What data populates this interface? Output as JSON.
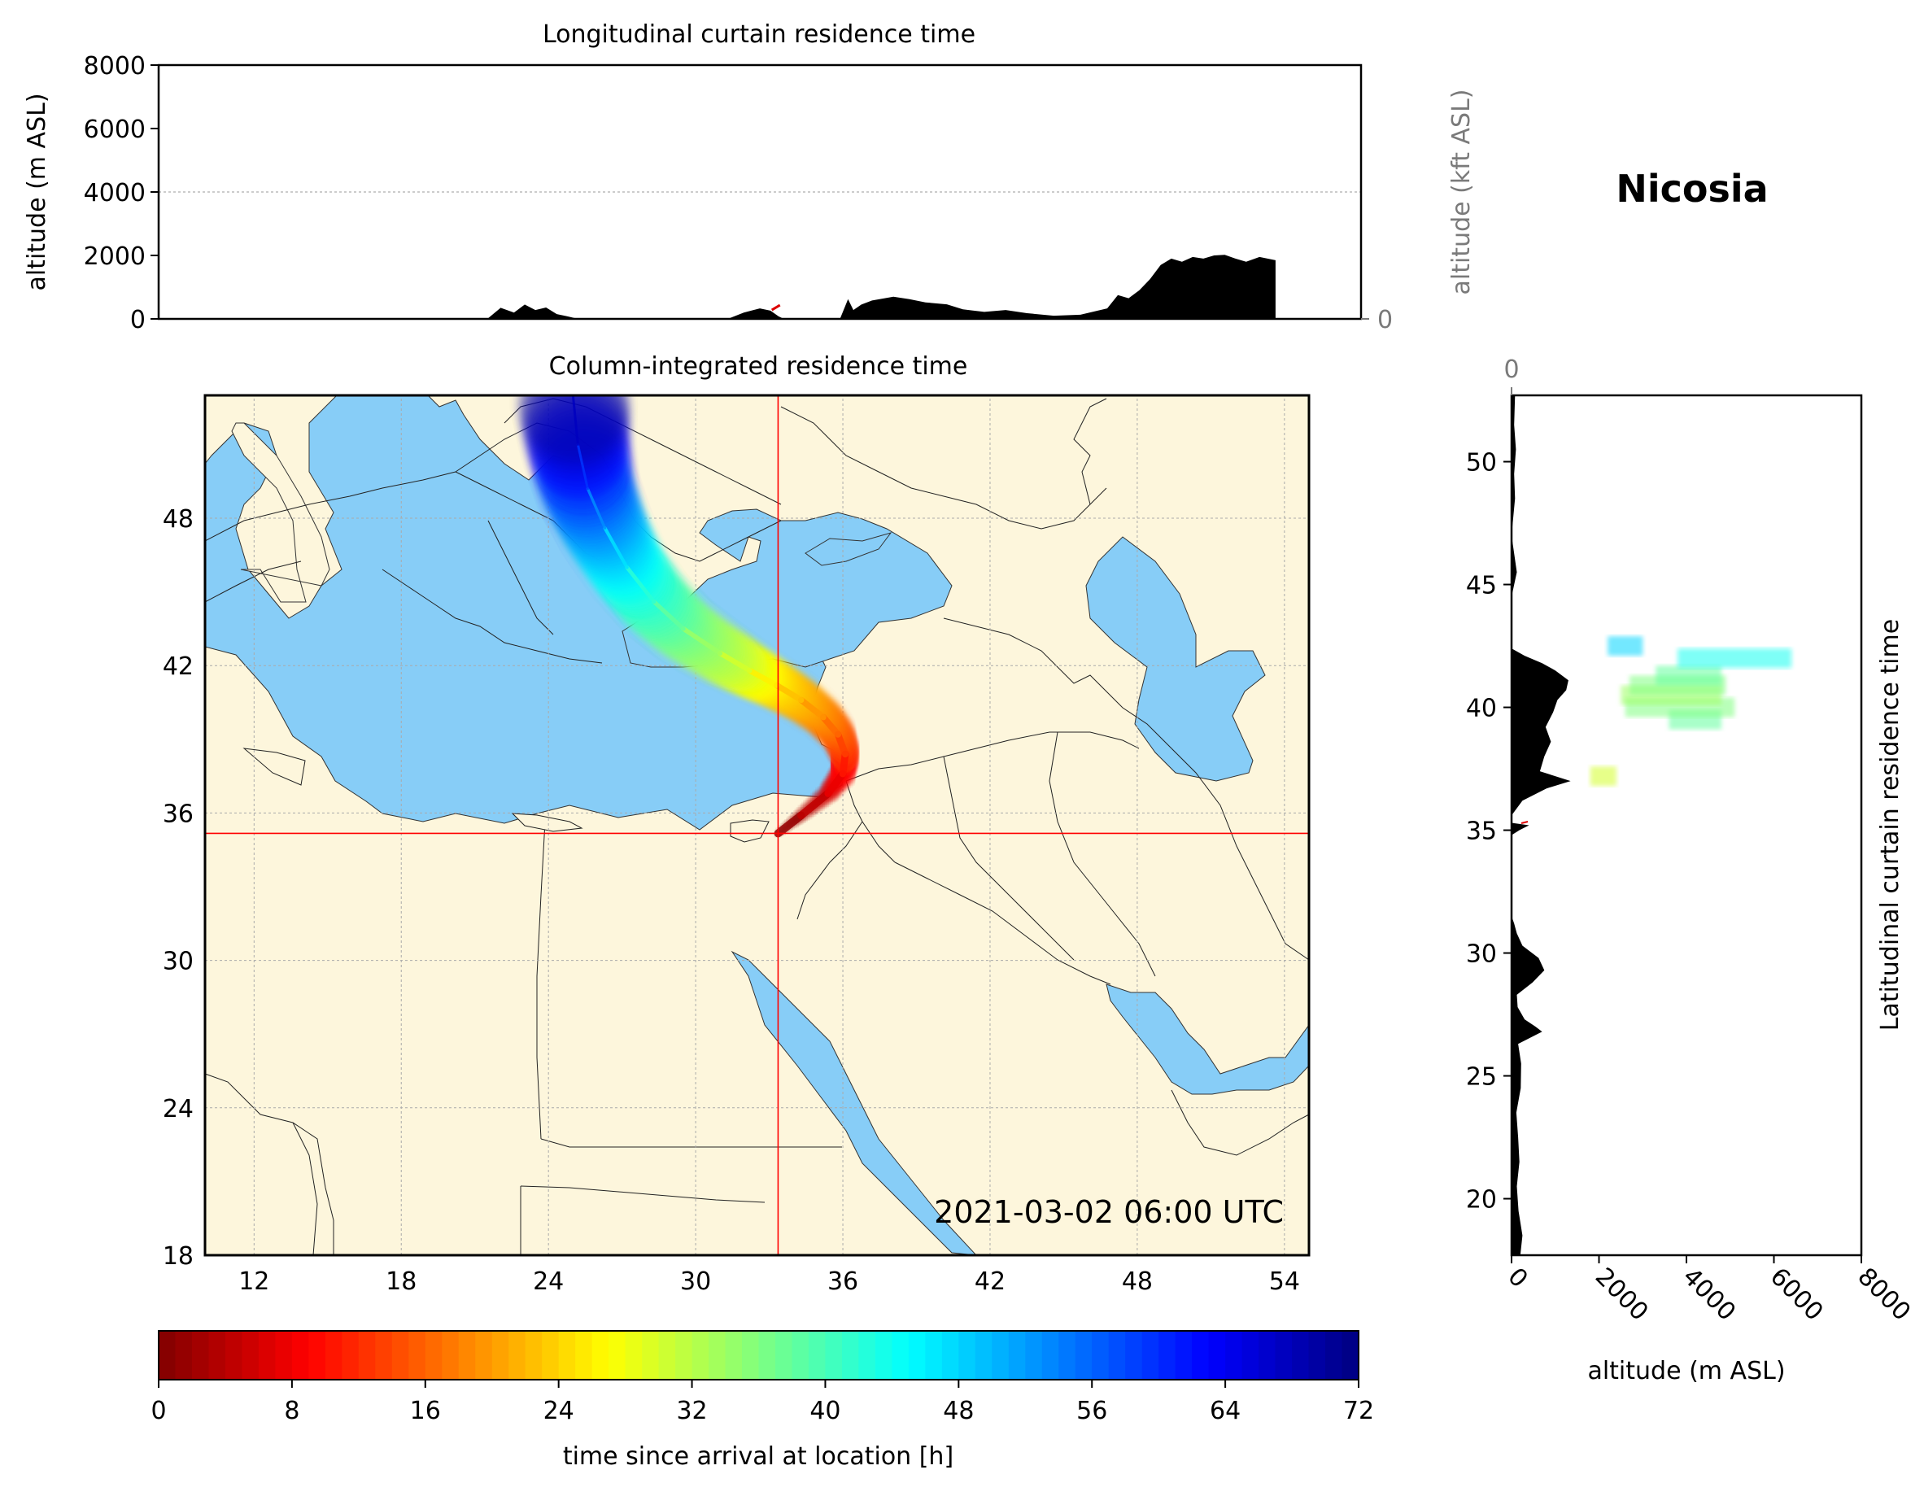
{
  "location_title": "Nicosia",
  "timestamp": "2021-03-02 06:00 UTC",
  "colors": {
    "sea": "#87cdf7",
    "land": "#fdf6dc",
    "terrain": "#000000",
    "crosshair": "#ff0000",
    "secondary_axis_text": "#7a7a7a"
  },
  "chart_data": [
    {
      "id": "longitudinal-curtain",
      "type": "area",
      "title": "Longitudinal curtain residence time",
      "xlabel": "",
      "ylabel": "altitude (m ASL)",
      "ylabel_right": "altitude (kft ASL)",
      "xlim": [
        10.5,
        55.5
      ],
      "ylim": [
        0,
        8000
      ],
      "yticks": [
        0,
        2000,
        4000,
        6000,
        8000
      ],
      "yticks_right": [
        0,
        50,
        100
      ],
      "grid": true,
      "terrain_x": [
        10.5,
        22.8,
        23.3,
        23.8,
        24.2,
        24.6,
        25.0,
        25.4,
        25.8,
        26.2,
        31.8,
        32.4,
        33.0,
        33.4,
        33.7,
        33.9,
        34.0,
        36.0,
        36.3,
        36.5,
        36.8,
        37.2,
        38.0,
        38.6,
        39.2,
        40.0,
        40.6,
        41.4,
        42.2,
        43.0,
        44.0,
        45.0,
        46.0,
        46.4,
        46.8,
        47.2,
        47.6,
        48.0,
        48.4,
        48.8,
        49.2,
        49.6,
        50.0,
        50.4,
        50.8,
        51.2,
        51.7,
        52.3,
        52.3,
        55.5
      ],
      "terrain_y": [
        0,
        0,
        350,
        200,
        450,
        280,
        360,
        150,
        80,
        0,
        0,
        200,
        330,
        260,
        80,
        0,
        0,
        0,
        620,
        280,
        450,
        580,
        700,
        620,
        520,
        460,
        300,
        220,
        280,
        180,
        100,
        130,
        330,
        750,
        650,
        900,
        1250,
        1700,
        1900,
        1800,
        1950,
        1900,
        2000,
        2020,
        1900,
        1800,
        1950,
        1850,
        0,
        0
      ],
      "residence_marker": {
        "x": 33.6,
        "y": 280
      }
    },
    {
      "id": "column-integrated-map",
      "type": "scatter",
      "title": "Column-integrated residence time",
      "xlim": [
        10,
        55
      ],
      "ylim": [
        18,
        53
      ],
      "xticks": [
        12,
        18,
        24,
        30,
        36,
        42,
        48,
        54
      ],
      "yticks": [
        18,
        24,
        30,
        36,
        42,
        48
      ],
      "release_point": {
        "lon": 33.36,
        "lat": 35.17
      },
      "trajectory_lon": [
        33.36,
        34.3,
        35.4,
        36.0,
        36.1,
        35.8,
        35.2,
        34.3,
        33.3,
        32.2,
        31.0,
        29.5,
        28.3,
        27.2,
        26.3,
        25.6,
        25.2,
        25.0
      ],
      "trajectory_lat": [
        35.17,
        35.9,
        36.8,
        37.6,
        38.4,
        39.2,
        39.9,
        40.6,
        41.2,
        41.8,
        42.5,
        43.5,
        44.6,
        46.0,
        47.6,
        49.2,
        51.0,
        53.0
      ],
      "trajectory_age_h": [
        0,
        3,
        6,
        9,
        12,
        15,
        18,
        21,
        24,
        28,
        32,
        36,
        40,
        44,
        50,
        56,
        63,
        72
      ]
    },
    {
      "id": "latitudinal-curtain",
      "type": "area",
      "title": "Latitudinal curtain residence time",
      "xlabel": "altitude (m ASL)",
      "xlabel_top": "",
      "xlim": [
        0,
        8000
      ],
      "ylim": [
        17.7,
        52.7
      ],
      "xticks": [
        0,
        2000,
        4000,
        6000,
        8000
      ],
      "xticks_top": [
        0,
        50,
        100
      ],
      "yticks": [
        20,
        25,
        30,
        35,
        40,
        45,
        50
      ],
      "grid": true,
      "terrain_lat": [
        17.7,
        18.5,
        19.5,
        20.5,
        21.5,
        22.5,
        23.5,
        24.5,
        25.5,
        26.3,
        26.8,
        27.0,
        27.3,
        27.8,
        28.3,
        28.8,
        29.3,
        29.8,
        30.3,
        30.8,
        31.2,
        31.5,
        34.8,
        35.0,
        35.2,
        35.3,
        35.6,
        36.2,
        36.7,
        37.0,
        37.4,
        38.0,
        38.6,
        39.2,
        39.8,
        40.3,
        40.7,
        41.1,
        41.5,
        41.8,
        42.1,
        42.4,
        44.5,
        45.5,
        47.0,
        48.5,
        49.5,
        50.5,
        51.5,
        52.7
      ],
      "terrain_alt": [
        200,
        250,
        160,
        120,
        180,
        150,
        110,
        210,
        220,
        150,
        700,
        550,
        300,
        140,
        120,
        480,
        750,
        620,
        250,
        120,
        60,
        0,
        0,
        180,
        400,
        0,
        0,
        250,
        800,
        1350,
        650,
        750,
        900,
        780,
        950,
        1050,
        1250,
        1300,
        1000,
        700,
        300,
        0,
        0,
        120,
        0,
        80,
        60,
        100,
        60,
        80
      ],
      "plume_lat": [
        37.2,
        39.5,
        40.0,
        40.5,
        40.9,
        41.3,
        42.0,
        42.5
      ],
      "plume_alt_min": [
        1800,
        3600,
        2600,
        2500,
        2700,
        3300,
        3800,
        2200
      ],
      "plume_alt_max": [
        2400,
        4800,
        5100,
        4800,
        4900,
        4800,
        6400,
        3000
      ],
      "plume_age_h": [
        30,
        38,
        36,
        34,
        36,
        38,
        44,
        48
      ]
    },
    {
      "id": "colorbar",
      "type": "colorbar",
      "label": "time since arrival at location [h]",
      "range": [
        0,
        72
      ],
      "ticks": [
        0,
        8,
        16,
        24,
        32,
        40,
        48,
        56,
        64,
        72
      ],
      "colormap": "jet_r"
    }
  ]
}
